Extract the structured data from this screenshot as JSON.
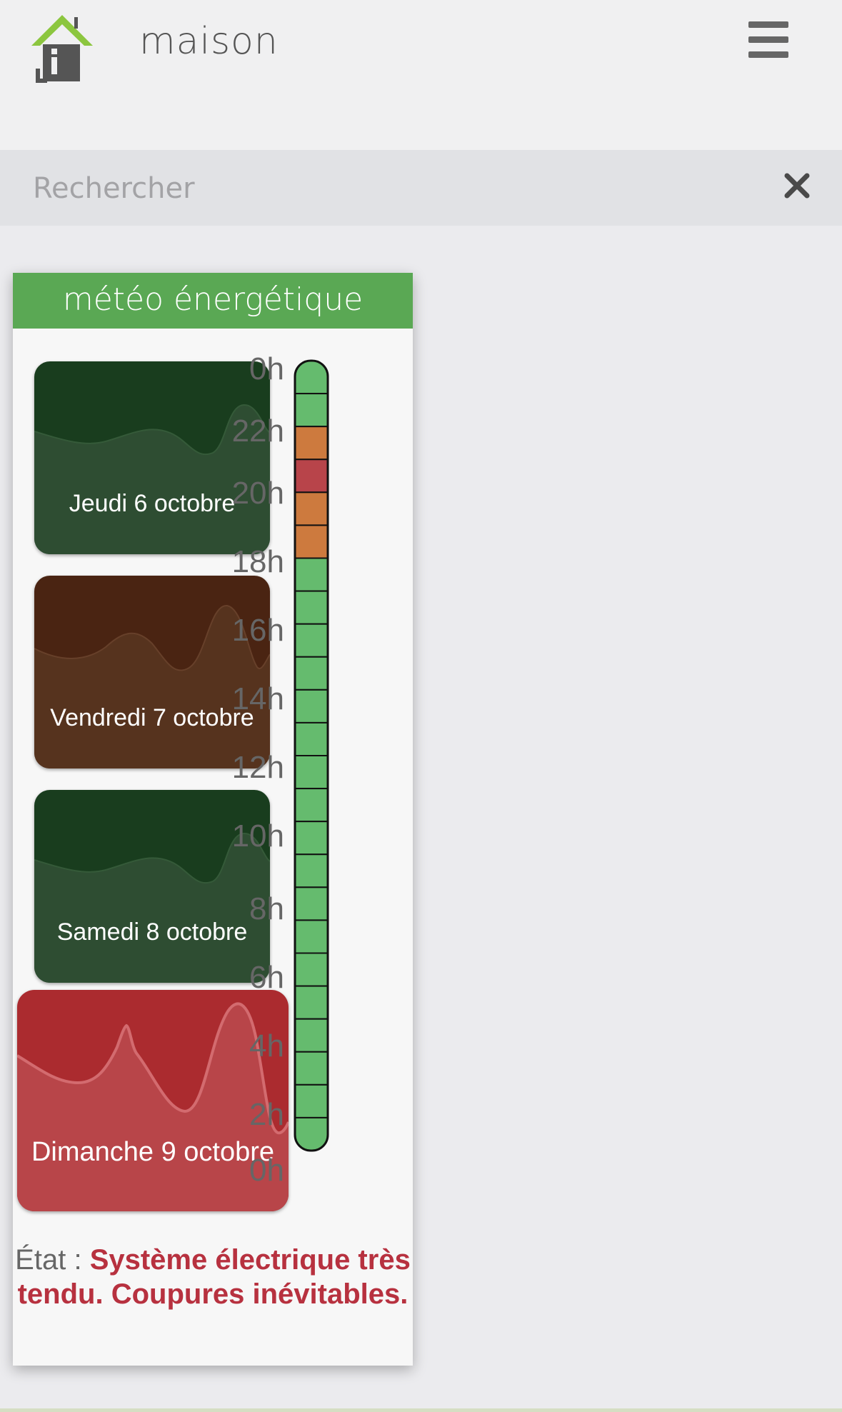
{
  "app": {
    "title": "maison"
  },
  "search": {
    "placeholder": "Rechercher",
    "value": ""
  },
  "widget": {
    "title": "météo énergétique",
    "days": [
      {
        "label": "Jeudi 6 octobre",
        "level": "green"
      },
      {
        "label": "Vendredi 7 octobre",
        "level": "orange"
      },
      {
        "label": "Samedi 8 octobre",
        "level": "green"
      },
      {
        "label": "Dimanche 9 octobre",
        "level": "red"
      }
    ],
    "hour_labels": [
      "0h",
      "22h",
      "20h",
      "18h",
      "16h",
      "14h",
      "12h",
      "10h",
      "8h",
      "6h",
      "4h",
      "2h",
      "0h"
    ],
    "gauge_segments": [
      "green",
      "green",
      "orange",
      "red",
      "orange",
      "orange",
      "green",
      "green",
      "green",
      "green",
      "green",
      "green",
      "green",
      "green",
      "green",
      "green",
      "green",
      "green",
      "green",
      "green",
      "green",
      "green",
      "green",
      "green"
    ],
    "status_label": "État :",
    "status_text": "Système électrique très tendu. Coupures inévitables."
  },
  "colors": {
    "green": "#65bb6e",
    "orange": "#cd7a3e",
    "red": "#b8444a",
    "header": "#5aa854",
    "status": "#b7313f"
  },
  "icons": {
    "logo": "house-logo-icon",
    "menu": "hamburger-menu-icon",
    "clear": "close-icon"
  }
}
